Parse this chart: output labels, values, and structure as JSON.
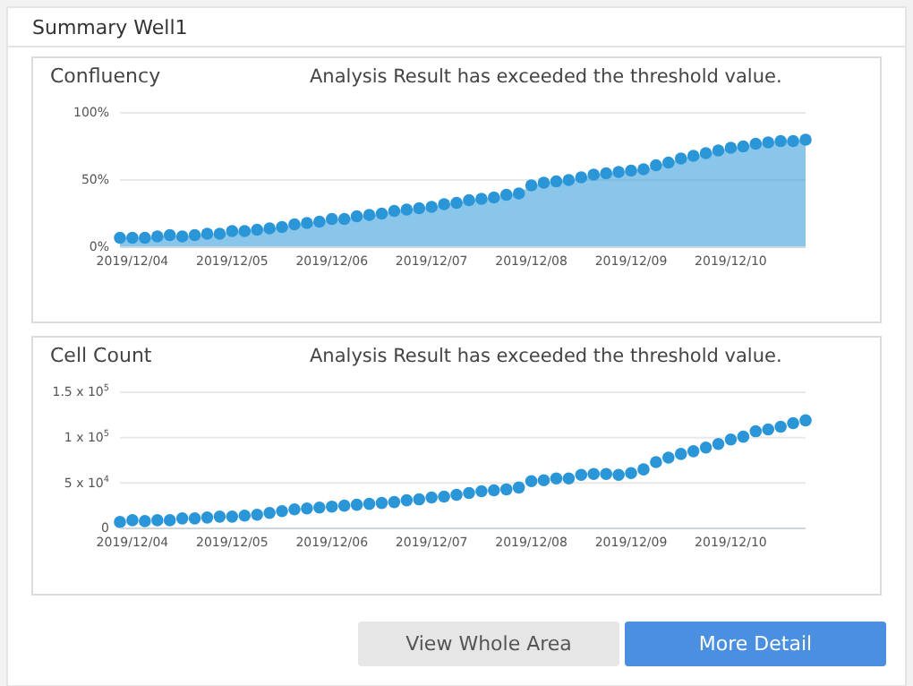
{
  "chart_data": [
    {
      "type": "area",
      "title": "Confluency",
      "subtitle": "Analysis Result has exceeded the threshold value.",
      "annotations": [
        "Summary Well1"
      ],
      "x": [
        "2019-12-03T21:00",
        "2019-12-04T00:00",
        "2019-12-04T03:00",
        "2019-12-04T06:00",
        "2019-12-04T09:00",
        "2019-12-04T12:00",
        "2019-12-04T15:00",
        "2019-12-04T18:00",
        "2019-12-04T21:00",
        "2019-12-05T00:00",
        "2019-12-05T03:00",
        "2019-12-05T06:00",
        "2019-12-05T09:00",
        "2019-12-05T12:00",
        "2019-12-05T15:00",
        "2019-12-05T18:00",
        "2019-12-05T21:00",
        "2019-12-06T00:00",
        "2019-12-06T03:00",
        "2019-12-06T06:00",
        "2019-12-06T09:00",
        "2019-12-06T12:00",
        "2019-12-06T15:00",
        "2019-12-06T18:00",
        "2019-12-06T21:00",
        "2019-12-07T00:00",
        "2019-12-07T03:00",
        "2019-12-07T06:00",
        "2019-12-07T09:00",
        "2019-12-07T12:00",
        "2019-12-07T15:00",
        "2019-12-07T18:00",
        "2019-12-07T21:00",
        "2019-12-08T00:00",
        "2019-12-08T03:00",
        "2019-12-08T06:00",
        "2019-12-08T09:00",
        "2019-12-08T12:00",
        "2019-12-08T15:00",
        "2019-12-08T18:00",
        "2019-12-08T21:00",
        "2019-12-09T00:00",
        "2019-12-09T03:00",
        "2019-12-09T06:00",
        "2019-12-09T09:00",
        "2019-12-09T12:00",
        "2019-12-09T15:00",
        "2019-12-09T18:00",
        "2019-12-09T21:00",
        "2019-12-10T00:00",
        "2019-12-10T03:00",
        "2019-12-10T06:00",
        "2019-12-10T09:00",
        "2019-12-10T12:00",
        "2019-12-10T15:00",
        "2019-12-10T18:00"
      ],
      "series": [
        {
          "color": "#2a96d8",
          "values": [
            7,
            7,
            7,
            8,
            9,
            8,
            9,
            10,
            10,
            12,
            12,
            13,
            14,
            15,
            17,
            18,
            19,
            21,
            21,
            23,
            24,
            25,
            27,
            28,
            29,
            30,
            32,
            33,
            35,
            36,
            37,
            39,
            40,
            46,
            48,
            49,
            50,
            52,
            54,
            55,
            56,
            57,
            58,
            61,
            63,
            66,
            68,
            70,
            72,
            74,
            75,
            77,
            78,
            79,
            79,
            80
          ]
        }
      ],
      "xlim": [
        "2019-12-03T21:00",
        "2019-12-10T18:00"
      ],
      "xticks": [
        {
          "value": "2019-12-04",
          "label": "2019/12/04"
        },
        {
          "value": "2019-12-05",
          "label": "2019/12/05"
        },
        {
          "value": "2019-12-06",
          "label": "2019/12/06"
        },
        {
          "value": "2019-12-07",
          "label": "2019/12/07"
        },
        {
          "value": "2019-12-08",
          "label": "2019/12/08"
        },
        {
          "value": "2019-12-09",
          "label": "2019/12/09"
        },
        {
          "value": "2019-12-10",
          "label": "2019/12/10"
        }
      ],
      "ylim": [
        0,
        100
      ],
      "yticks": [
        {
          "value": 0,
          "label": "0%"
        },
        {
          "value": 50,
          "label": "50%"
        },
        {
          "value": 100,
          "label": "100%"
        }
      ],
      "grid": "y",
      "marker": "circle"
    },
    {
      "type": "scatter",
      "title": "Cell Count",
      "subtitle": "Analysis Result has exceeded the threshold value.",
      "x": [
        "2019-12-03T21:00",
        "2019-12-04T00:00",
        "2019-12-04T03:00",
        "2019-12-04T06:00",
        "2019-12-04T09:00",
        "2019-12-04T12:00",
        "2019-12-04T15:00",
        "2019-12-04T18:00",
        "2019-12-04T21:00",
        "2019-12-05T00:00",
        "2019-12-05T03:00",
        "2019-12-05T06:00",
        "2019-12-05T09:00",
        "2019-12-05T12:00",
        "2019-12-05T15:00",
        "2019-12-05T18:00",
        "2019-12-05T21:00",
        "2019-12-06T00:00",
        "2019-12-06T03:00",
        "2019-12-06T06:00",
        "2019-12-06T09:00",
        "2019-12-06T12:00",
        "2019-12-06T15:00",
        "2019-12-06T18:00",
        "2019-12-06T21:00",
        "2019-12-07T00:00",
        "2019-12-07T03:00",
        "2019-12-07T06:00",
        "2019-12-07T09:00",
        "2019-12-07T12:00",
        "2019-12-07T15:00",
        "2019-12-07T18:00",
        "2019-12-07T21:00",
        "2019-12-08T00:00",
        "2019-12-08T03:00",
        "2019-12-08T06:00",
        "2019-12-08T09:00",
        "2019-12-08T12:00",
        "2019-12-08T15:00",
        "2019-12-08T18:00",
        "2019-12-08T21:00",
        "2019-12-09T00:00",
        "2019-12-09T03:00",
        "2019-12-09T06:00",
        "2019-12-09T09:00",
        "2019-12-09T12:00",
        "2019-12-09T15:00",
        "2019-12-09T18:00",
        "2019-12-09T21:00",
        "2019-12-10T00:00",
        "2019-12-10T03:00",
        "2019-12-10T06:00",
        "2019-12-10T09:00",
        "2019-12-10T12:00",
        "2019-12-10T15:00",
        "2019-12-10T18:00"
      ],
      "series": [
        {
          "color": "#2a96d8",
          "values": [
            7000,
            9000,
            8000,
            9000,
            9000,
            11000,
            11000,
            12000,
            13000,
            13000,
            14000,
            15000,
            17000,
            19000,
            21000,
            22000,
            23000,
            24000,
            25000,
            26000,
            27000,
            28000,
            29000,
            31000,
            32000,
            34000,
            35000,
            37000,
            39000,
            41000,
            42000,
            43000,
            45000,
            52000,
            53000,
            55000,
            55000,
            59000,
            60000,
            60000,
            59000,
            61000,
            65000,
            73000,
            78000,
            82000,
            85000,
            89000,
            93000,
            98000,
            101000,
            107000,
            109000,
            112000,
            116000,
            119000
          ]
        }
      ],
      "xlim": [
        "2019-12-03T21:00",
        "2019-12-10T18:00"
      ],
      "xticks": [
        {
          "value": "2019-12-04",
          "label": "2019/12/04"
        },
        {
          "value": "2019-12-05",
          "label": "2019/12/05"
        },
        {
          "value": "2019-12-06",
          "label": "2019/12/06"
        },
        {
          "value": "2019-12-07",
          "label": "2019/12/07"
        },
        {
          "value": "2019-12-08",
          "label": "2019/12/08"
        },
        {
          "value": "2019-12-09",
          "label": "2019/12/09"
        },
        {
          "value": "2019-12-10",
          "label": "2019/12/10"
        }
      ],
      "ylim": [
        0,
        150000
      ],
      "yticks": [
        0,
        {
          "value": 50000,
          "label": "5 x 10$^{4}$"
        },
        {
          "value": 100000,
          "label": "1 x 10$^{5}$"
        },
        {
          "value": 150000,
          "label": "1.5 x 10$^{5}$"
        }
      ],
      "grid": "y",
      "marker": "circle"
    },
    {
      "type": "other",
      "annotations": [
        "View Whole Area",
        "More Detail"
      ]
    }
  ]
}
